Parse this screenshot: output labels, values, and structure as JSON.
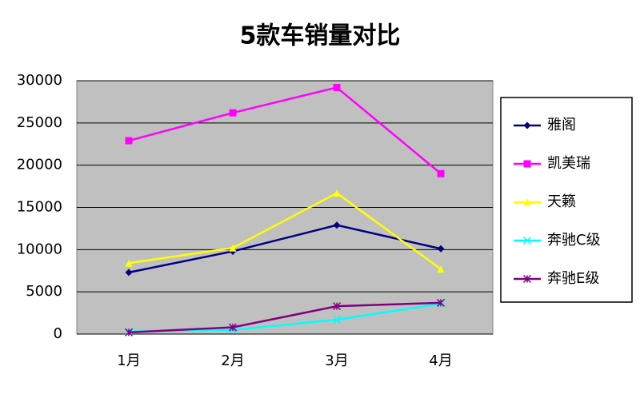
{
  "chart_data": {
    "type": "line",
    "title": "5款车销量对比",
    "categories": [
      "1月",
      "2月",
      "3月",
      "4月"
    ],
    "series": [
      {
        "name": "雅阁",
        "color": "#000080",
        "marker": "diamond",
        "values": [
          7300,
          9800,
          12900,
          10100
        ]
      },
      {
        "name": "凯美瑞",
        "color": "#ff00ff",
        "marker": "square",
        "values": [
          22900,
          26200,
          29200,
          19000
        ]
      },
      {
        "name": "天籁",
        "color": "#ffff00",
        "marker": "triangle",
        "values": [
          8400,
          10200,
          16700,
          7700
        ]
      },
      {
        "name": "奔驰C级",
        "color": "#00ffff",
        "marker": "x",
        "values": [
          300,
          500,
          1700,
          3600
        ]
      },
      {
        "name": "奔驰E级",
        "color": "#800080",
        "marker": "star",
        "values": [
          200,
          800,
          3300,
          3700
        ]
      }
    ],
    "ylim": [
      0,
      30000
    ],
    "yticks": [
      0,
      5000,
      10000,
      15000,
      20000,
      25000,
      30000
    ],
    "grid": true,
    "plot_background": "#c0c0c0",
    "legend": "right"
  }
}
